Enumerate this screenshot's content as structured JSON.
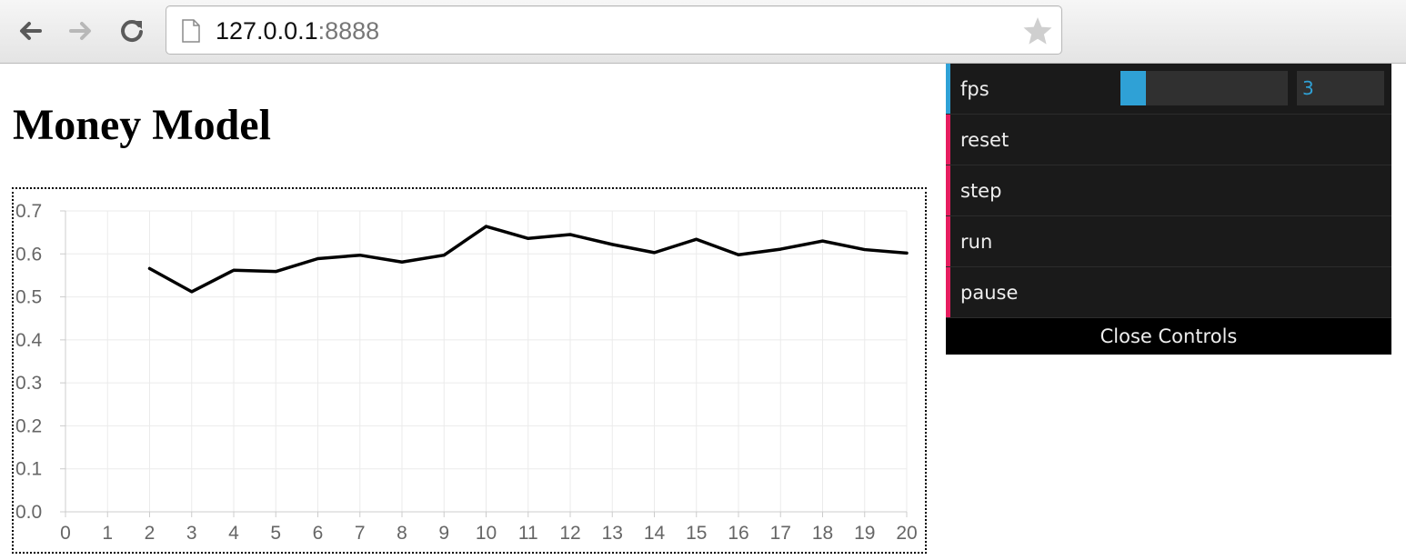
{
  "browser": {
    "url_host": "127.0.0.1",
    "url_port": ":8888",
    "icons": [
      "back-icon",
      "forward-icon",
      "reload-icon",
      "page-icon",
      "bookmark-star-icon"
    ]
  },
  "page": {
    "title": "Money Model"
  },
  "chart_data": {
    "type": "line",
    "title": "",
    "xlabel": "",
    "ylabel": "",
    "x_ticks": [
      "0",
      "1",
      "2",
      "3",
      "4",
      "5",
      "6",
      "7",
      "8",
      "9",
      "10",
      "11",
      "12",
      "13",
      "14",
      "15",
      "16",
      "17",
      "18",
      "19",
      "20"
    ],
    "y_ticks": [
      "0.0",
      "0.1",
      "0.2",
      "0.3",
      "0.4",
      "0.5",
      "0.6",
      "0.7"
    ],
    "xlim": [
      0,
      20
    ],
    "ylim": [
      0,
      0.7
    ],
    "grid": true,
    "series": [
      {
        "x": [
          2,
          3,
          4,
          5,
          6,
          7,
          8,
          9,
          10,
          11,
          12,
          13,
          14,
          15,
          16,
          17,
          18,
          19,
          20
        ],
        "values": [
          0.566,
          0.512,
          0.562,
          0.559,
          0.589,
          0.597,
          0.581,
          0.597,
          0.664,
          0.636,
          0.645,
          0.622,
          0.603,
          0.634,
          0.598,
          0.611,
          0.63,
          0.61,
          0.602
        ],
        "color": "#000000"
      }
    ]
  },
  "controls": {
    "fps_label": "fps",
    "fps_value": "3",
    "fps_level": 0.15,
    "reset_label": "reset",
    "step_label": "step",
    "run_label": "run",
    "pause_label": "pause",
    "close_label": "Close Controls",
    "colors": {
      "number_accent": "#2fa1d6",
      "function_accent": "#e61d5f",
      "panel_bg": "#1a1a1a"
    }
  }
}
